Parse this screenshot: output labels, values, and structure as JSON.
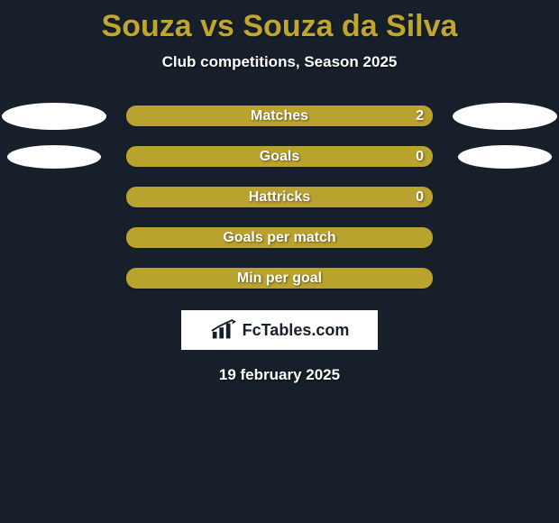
{
  "colors": {
    "background": "#17202a",
    "title": "#c0a62f",
    "subtitle": "#ffffff",
    "bar_fill": "#b9a22e",
    "bar_empty": "#c0a62f",
    "bar_label": "#ffffff",
    "ellipse": "#ffffff",
    "logo_bg": "#ffffff",
    "logo_text": "#17202a",
    "date": "#ffffff"
  },
  "title": "Souza vs Souza da Silva",
  "subtitle": "Club competitions, Season 2025",
  "rows": [
    {
      "label": "Matches",
      "right_value": "2",
      "left_ellipse": true,
      "right_ellipse": true,
      "row0": true
    },
    {
      "label": "Goals",
      "right_value": "0",
      "left_ellipse": true,
      "right_ellipse": true,
      "row0": false
    },
    {
      "label": "Hattricks",
      "right_value": "0",
      "left_ellipse": false,
      "right_ellipse": false,
      "row0": false
    },
    {
      "label": "Goals per match",
      "right_value": "",
      "left_ellipse": false,
      "right_ellipse": false,
      "row0": false
    },
    {
      "label": "Min per goal",
      "right_value": "",
      "left_ellipse": false,
      "right_ellipse": false,
      "row0": false
    }
  ],
  "logo_text": "FcTables.com",
  "date": "19 february 2025"
}
